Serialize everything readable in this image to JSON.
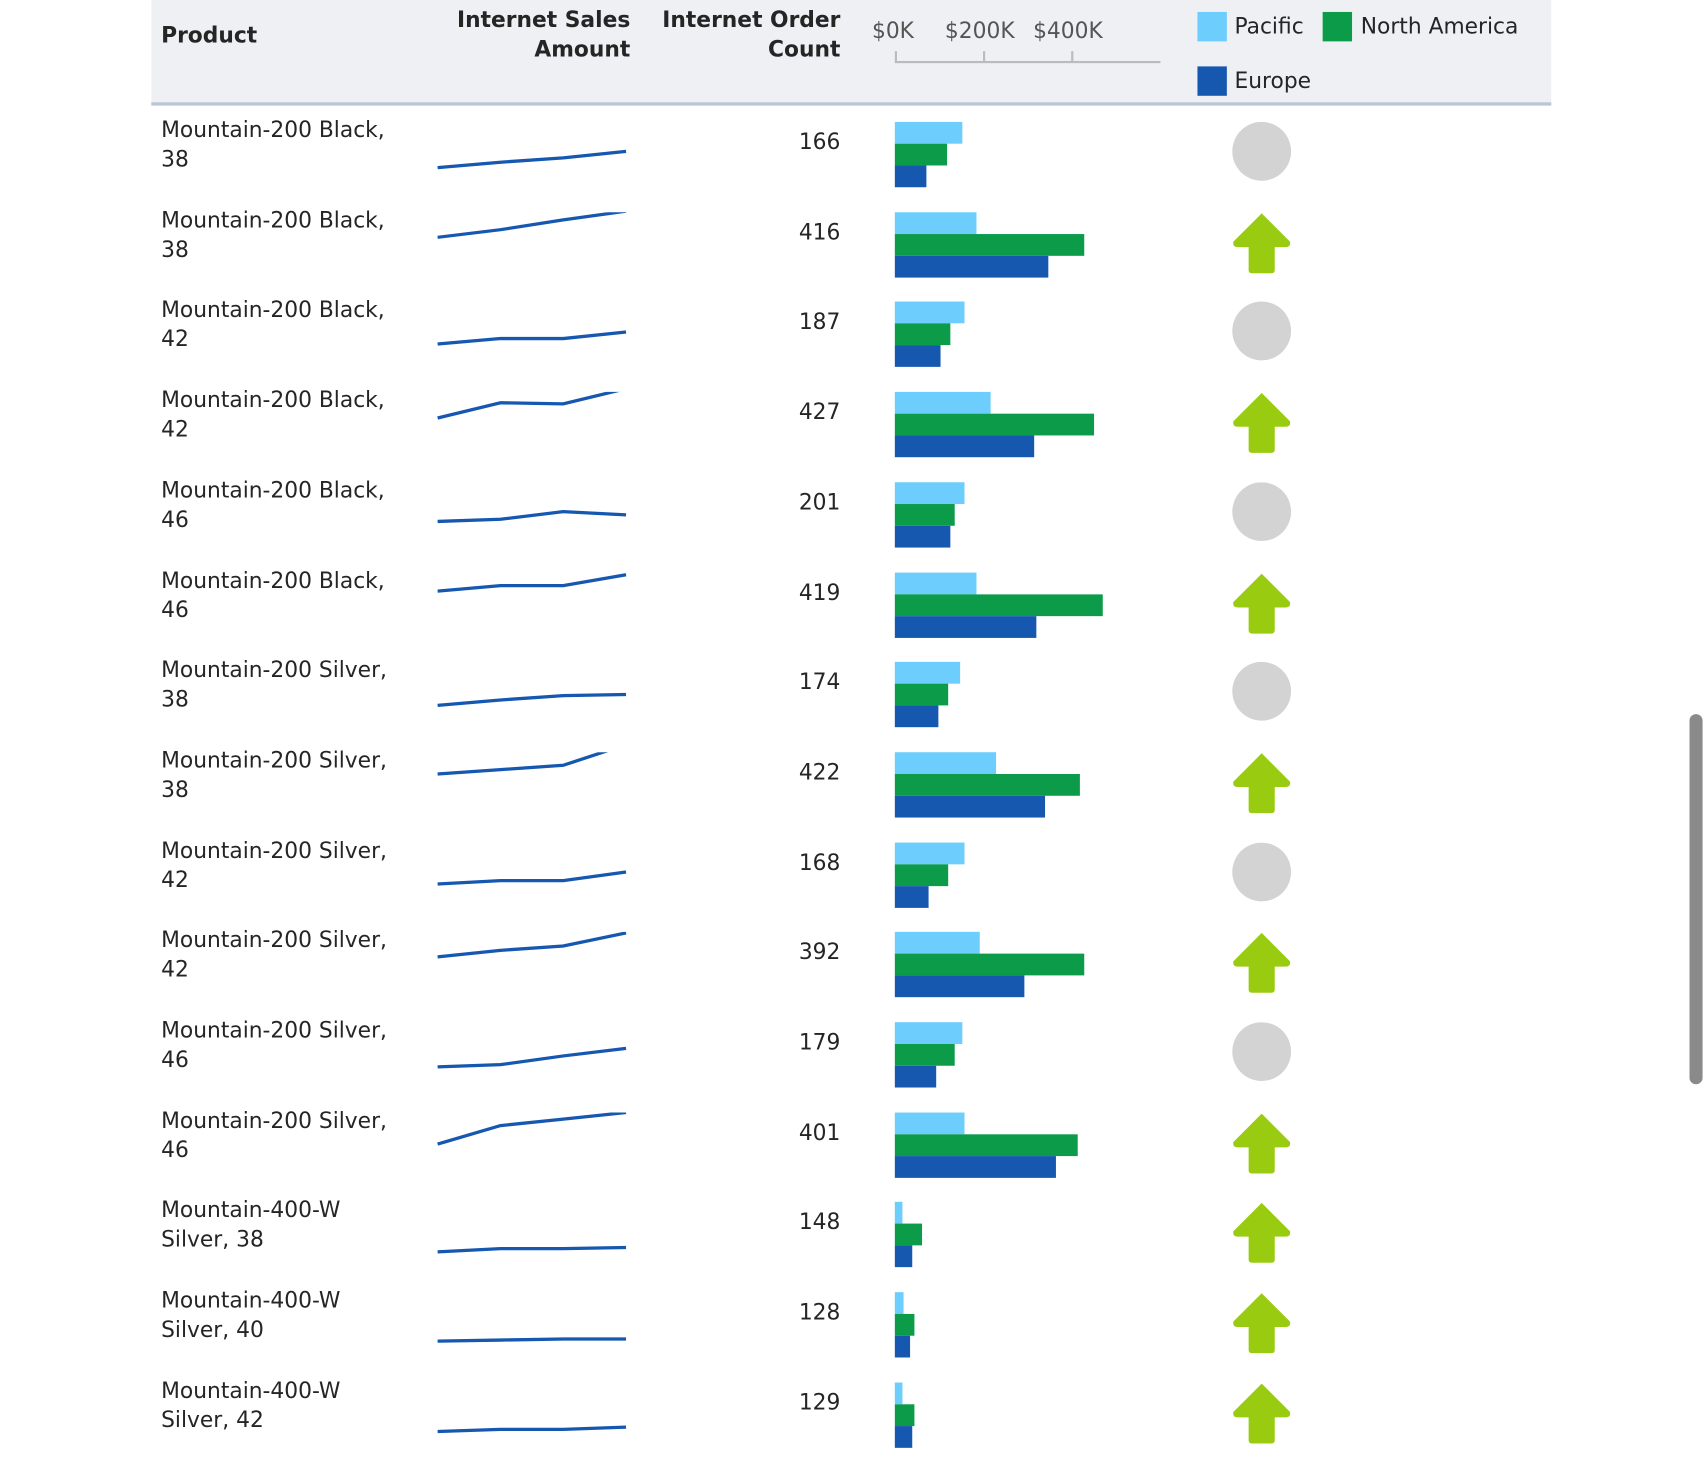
{
  "header": {
    "product": "Product",
    "sales_line1": "Internet Sales",
    "sales_line2": "Amount",
    "count_line1": "Internet Order",
    "count_line2": "Count",
    "axis_ticks": [
      "$0K",
      "$200K",
      "$400K"
    ]
  },
  "legend": [
    {
      "label": "Pacific",
      "color": "#6dcdfd"
    },
    {
      "label": "North America",
      "color": "#0b9b49"
    },
    {
      "label": "Europe",
      "color": "#1657b0"
    }
  ],
  "colors": {
    "sparkline": "#1657b0",
    "neutral": "#d3d3d3",
    "up": "#99cc10"
  },
  "bar_axis_max_k": 600,
  "rows": [
    {
      "product": "Mountain-200 Black, 38",
      "count": "166",
      "trend": [
        8,
        13,
        17,
        23
      ],
      "sales_k": [
        152,
        118,
        71
      ],
      "status": "neutral"
    },
    {
      "product": "Mountain-200 Black, 38",
      "count": "416",
      "trend": [
        27,
        34,
        43,
        51
      ],
      "sales_k": [
        184,
        427,
        346
      ],
      "status": "up"
    },
    {
      "product": "Mountain-200 Black, 42",
      "count": "187",
      "trend": [
        11,
        16,
        16,
        22
      ],
      "sales_k": [
        157,
        125,
        103
      ],
      "status": "neutral"
    },
    {
      "product": "Mountain-200 Black, 42",
      "count": "427",
      "trend": [
        26,
        40,
        39,
        53
      ],
      "sales_k": [
        216,
        449,
        314
      ],
      "status": "up"
    },
    {
      "product": "Mountain-200 Black, 46",
      "count": "201",
      "trend": [
        14,
        16,
        23,
        20
      ],
      "sales_k": [
        157,
        135,
        125
      ],
      "status": "neutral"
    },
    {
      "product": "Mountain-200 Black, 46",
      "count": "419",
      "trend": [
        33,
        38,
        38,
        48
      ],
      "sales_k": [
        184,
        469,
        319
      ],
      "status": "up"
    },
    {
      "product": "Mountain-200 Silver, 38",
      "count": "174",
      "trend": [
        10,
        15,
        19,
        20
      ],
      "sales_k": [
        147,
        120,
        98
      ],
      "status": "neutral"
    },
    {
      "product": "Mountain-200 Silver, 38",
      "count": "422",
      "trend": [
        30,
        34,
        38,
        57
      ],
      "sales_k": [
        228,
        417,
        339
      ],
      "status": "up"
    },
    {
      "product": "Mountain-200 Silver, 42",
      "count": "168",
      "trend": [
        12,
        15,
        15,
        23
      ],
      "sales_k": [
        157,
        120,
        76
      ],
      "status": "neutral"
    },
    {
      "product": "Mountain-200 Silver, 42",
      "count": "392",
      "trend": [
        27,
        33,
        37,
        49
      ],
      "sales_k": [
        191,
        427,
        292
      ],
      "status": "up"
    },
    {
      "product": "Mountain-200 Silver, 46",
      "count": "179",
      "trend": [
        9,
        11,
        19,
        26
      ],
      "sales_k": [
        152,
        135,
        93
      ],
      "status": "neutral"
    },
    {
      "product": "Mountain-200 Silver, 46",
      "count": "401",
      "trend": [
        21,
        38,
        44,
        50
      ],
      "sales_k": [
        157,
        412,
        363
      ],
      "status": "up"
    },
    {
      "product": "Mountain-400-W Silver, 38",
      "count": "148",
      "trend": [
        4,
        7,
        7,
        8
      ],
      "sales_k": [
        17,
        61,
        39
      ],
      "status": "up"
    },
    {
      "product": "Mountain-400-W Silver, 40",
      "count": "128",
      "trend": [
        5,
        6,
        7,
        7
      ],
      "sales_k": [
        20,
        44,
        34
      ],
      "status": "up"
    },
    {
      "product": "Mountain-400-W Silver, 42",
      "count": "129",
      "trend": [
        5,
        7,
        7,
        9
      ],
      "sales_k": [
        17,
        44,
        39
      ],
      "status": "up"
    }
  ]
}
